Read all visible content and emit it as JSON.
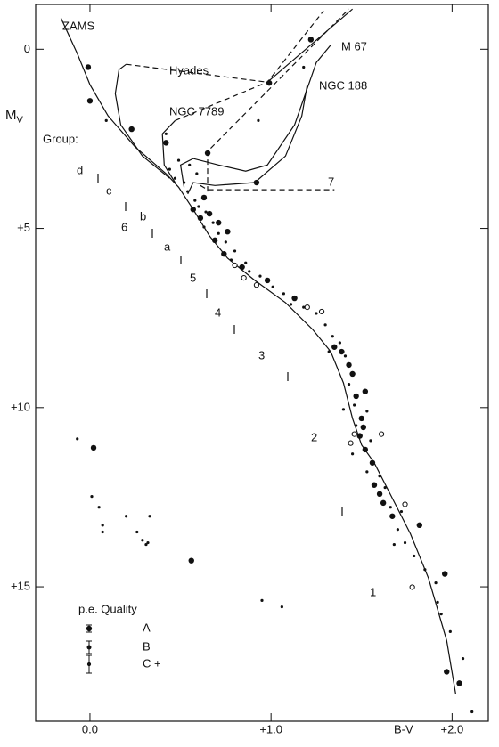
{
  "chart_data": {
    "type": "scatter",
    "xlabel": "B-V",
    "ylabel": "M",
    "ylabel_sub": "V",
    "xlim": [
      -0.3,
      2.2
    ],
    "ylim": [
      -1.25,
      18.75
    ],
    "y_inverted": true,
    "xticks": [
      {
        "value": 0,
        "label": "0.0"
      },
      {
        "value": 1,
        "label": "+1.0"
      },
      {
        "value": 2,
        "label": "+2.0"
      }
    ],
    "yticks": [
      0,
      {
        "value": 5,
        "label": "+5"
      },
      {
        "value": 10,
        "label": "+10"
      },
      {
        "value": 15,
        "label": "+15"
      }
    ],
    "color": "#111111",
    "series": [
      {
        "marker": "large",
        "x": [
          -0.01,
          0.0,
          0.23,
          0.42,
          0.65,
          0.92,
          1.22,
          0.99,
          0.57,
          0.61,
          0.69,
          0.74,
          0.84,
          0.98,
          1.13,
          1.35,
          1.39,
          1.45,
          1.47,
          1.5,
          1.49,
          1.52,
          1.56,
          1.57,
          1.62,
          1.67,
          0.02,
          0.56,
          1.97,
          2.04,
          1.96,
          1.82,
          1.52,
          1.43,
          0.76,
          0.66,
          1.51,
          1.6,
          0.63,
          0.71
        ],
        "y": [
          0.5,
          1.44,
          2.23,
          2.61,
          2.9,
          3.72,
          -0.27,
          0.94,
          4.47,
          4.71,
          5.33,
          5.71,
          6.08,
          6.45,
          6.95,
          8.31,
          8.44,
          9.06,
          9.68,
          10.3,
          10.79,
          11.17,
          11.54,
          12.16,
          12.66,
          13.03,
          11.12,
          14.27,
          17.37,
          17.69,
          14.64,
          13.28,
          9.55,
          8.81,
          5.09,
          4.59,
          10.55,
          12.41,
          4.14,
          4.84
        ]
      },
      {
        "marker": "small",
        "x": [
          0.52,
          0.54,
          0.58,
          0.6,
          0.64,
          0.68,
          0.63,
          0.71,
          0.75,
          0.8,
          0.78,
          0.86,
          0.88,
          0.94,
          1.01,
          1.07,
          1.11,
          1.18,
          1.25,
          1.3,
          1.34,
          1.38,
          1.32,
          1.41,
          1.43,
          1.46,
          1.4,
          1.53,
          1.47,
          1.45,
          1.55,
          1.53,
          1.6,
          1.63,
          1.66,
          1.72,
          1.7,
          1.74,
          1.79,
          1.85,
          1.91,
          1.94,
          1.99,
          0.44,
          0.49,
          0.55,
          0.59,
          0.47,
          0.09,
          0.93,
          0.42,
          1.18,
          -0.07,
          0.01,
          0.05,
          0.07,
          0.2,
          0.26,
          0.29,
          0.31,
          0.33,
          0.95,
          1.06,
          1.68,
          2.06,
          2.11,
          1.92,
          0.07,
          0.32
        ],
        "y": [
          3.72,
          3.97,
          4.22,
          4.39,
          4.54,
          4.84,
          4.96,
          5.14,
          5.38,
          5.63,
          5.88,
          5.96,
          6.2,
          6.33,
          6.63,
          6.82,
          7.12,
          7.2,
          7.37,
          7.69,
          8.01,
          8.19,
          8.44,
          8.56,
          9.35,
          9.93,
          10.05,
          10.1,
          10.5,
          11.29,
          10.92,
          11.79,
          11.91,
          12.23,
          12.78,
          12.9,
          13.4,
          13.77,
          14.14,
          14.52,
          14.89,
          15.76,
          16.25,
          3.35,
          3.1,
          3.23,
          3.47,
          3.6,
          1.99,
          1.99,
          2.36,
          0.5,
          10.87,
          12.48,
          12.78,
          13.47,
          13.03,
          13.47,
          13.7,
          13.82,
          13.03,
          15.38,
          15.56,
          13.82,
          17.0,
          18.49,
          15.43,
          13.28,
          13.77
        ]
      },
      {
        "marker": "open",
        "x": [
          0.8,
          0.85,
          0.92,
          1.2,
          1.28,
          1.46,
          1.44,
          1.61,
          1.74,
          1.78
        ],
        "y": [
          6.03,
          6.38,
          6.58,
          7.2,
          7.32,
          10.74,
          10.99,
          10.74,
          12.7,
          15.01
        ]
      }
    ],
    "lines": [
      {
        "dash": false,
        "x": [
          -0.16,
          -0.07,
          0.0,
          0.1,
          0.25,
          0.42,
          0.49,
          0.57,
          0.66,
          0.76,
          0.91,
          1.08,
          1.23,
          1.33,
          1.4,
          1.45,
          1.5,
          1.57,
          1.67,
          1.77,
          1.87,
          1.97,
          2.02
        ],
        "y": [
          -0.87,
          0.12,
          0.99,
          1.86,
          2.73,
          3.47,
          3.85,
          4.47,
          5.21,
          5.83,
          6.45,
          7.07,
          7.82,
          8.44,
          9.31,
          10.3,
          11.04,
          11.54,
          12.53,
          13.52,
          14.76,
          16.5,
          17.99
        ]
      },
      {
        "dash": false,
        "x": [
          0.44,
          0.29,
          0.17,
          0.14,
          0.16,
          0.2
        ],
        "y": [
          3.6,
          2.98,
          2.11,
          1.24,
          0.57,
          0.42
        ]
      },
      {
        "dash": true,
        "x": [
          0.2,
          0.98
        ],
        "y": [
          0.42,
          0.92
        ]
      },
      {
        "dash": false,
        "x": [
          0.47,
          0.41,
          0.4,
          0.47
        ],
        "y": [
          3.72,
          3.23,
          2.36,
          1.99
        ]
      },
      {
        "dash": true,
        "x": [
          0.47,
          0.98,
          1.29
        ],
        "y": [
          1.99,
          0.92,
          -1.07
        ]
      },
      {
        "dash": true,
        "x": [
          0.65,
          0.65,
          1.43
        ],
        "y": [
          3.97,
          2.85,
          -1.12
        ]
      },
      {
        "dash": false,
        "x": [
          0.98,
          1.45
        ],
        "y": [
          0.92,
          -1.12
        ]
      },
      {
        "dash": false,
        "x": [
          0.52,
          0.5,
          0.57,
          0.71,
          0.86,
          0.98,
          1.13,
          1.25,
          1.33
        ],
        "y": [
          3.85,
          3.23,
          3.05,
          3.23,
          3.4,
          3.23,
          2.11,
          0.37,
          -0.12
        ]
      },
      {
        "dash": false,
        "x": [
          0.54,
          0.57,
          0.69,
          0.91,
          1.08,
          1.17,
          1.2
        ],
        "y": [
          4.04,
          3.72,
          3.8,
          3.72,
          2.98,
          1.86,
          0.99
        ]
      },
      {
        "dash": true,
        "x": [
          0.61,
          0.65,
          1.35
        ],
        "y": [
          3.8,
          3.92,
          3.92
        ]
      }
    ],
    "labels": [
      "ZAMS",
      "Hyades",
      "NGC 7789",
      "M 67",
      "NGC 188",
      "7",
      "Group:",
      "d",
      "c",
      "b",
      "a",
      "6",
      "5",
      "4",
      "3",
      "2",
      "1"
    ],
    "legend": {
      "title": "p.e.  Quality",
      "entries": [
        "A",
        "B",
        "C +"
      ]
    }
  }
}
